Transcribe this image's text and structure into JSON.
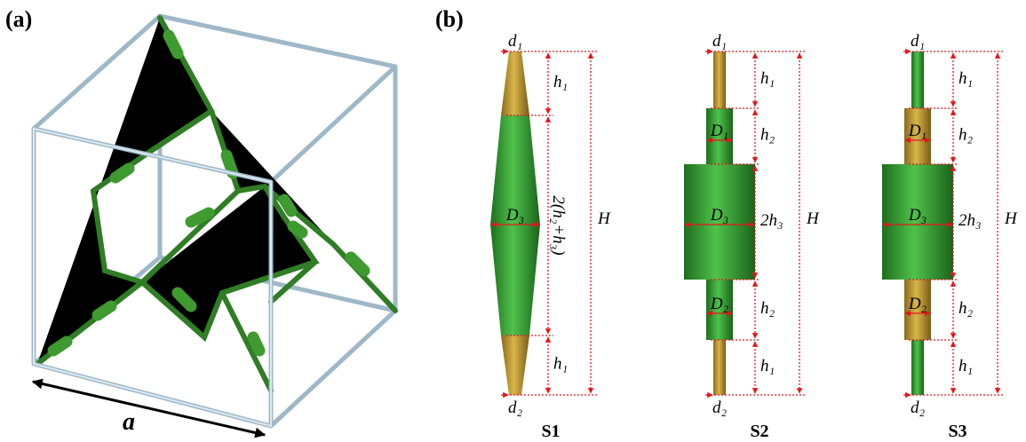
{
  "panel_a": {
    "label": "(a)",
    "edge_label": "a"
  },
  "panel_b": {
    "label": "(b)",
    "struts": [
      {
        "name": "S1",
        "top": "d₁",
        "bottom": "d₂",
        "segments": [
          "h₁",
          "2(h₂+h₃)",
          "h₁"
        ],
        "diameters": [
          "D₃"
        ],
        "total": "H"
      },
      {
        "name": "S2",
        "top": "d₁",
        "bottom": "d₂",
        "segments": [
          "h₁",
          "h₂",
          "2h₃",
          "h₂",
          "h₁"
        ],
        "diameters": [
          "D₁",
          "D₃",
          "D₂"
        ],
        "total": "H"
      },
      {
        "name": "S3",
        "top": "d₁",
        "bottom": "d₂",
        "segments": [
          "h₁",
          "h₂",
          "2h₃",
          "h₂",
          "h₁"
        ],
        "diameters": [
          "D₁",
          "D₃",
          "D₂"
        ],
        "total": "H"
      }
    ]
  }
}
